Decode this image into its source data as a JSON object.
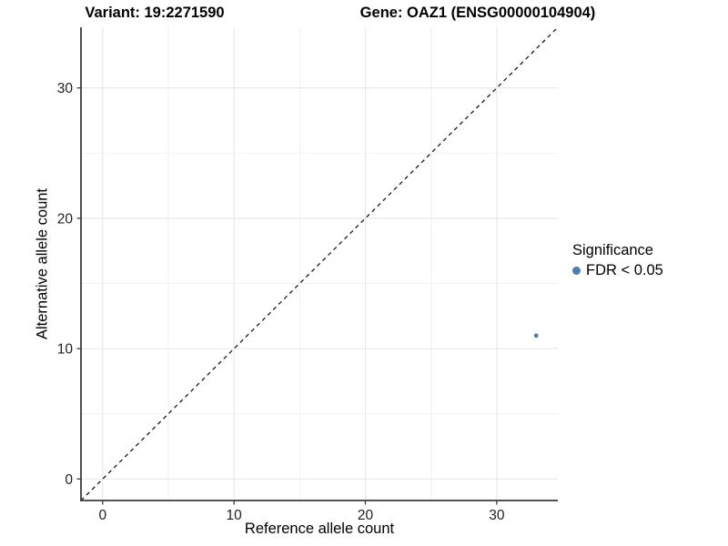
{
  "chart_data": {
    "type": "scatter",
    "title_variant": "Variant: 19:2271590",
    "title_gene": "Gene: OAZ1 (ENSG00000104904)",
    "xlabel": "Reference allele count",
    "ylabel": "Alternative allele count",
    "xlim": [
      -1.65,
      34.65
    ],
    "ylim": [
      -1.65,
      34.65
    ],
    "xticks": [
      0,
      10,
      20,
      30
    ],
    "yticks": [
      0,
      10,
      20,
      30
    ],
    "xminor": [
      5,
      15,
      25
    ],
    "yminor": [
      5,
      15,
      25
    ],
    "grid": true,
    "points": [
      {
        "x": 33,
        "y": 11,
        "series": "FDR < 0.05"
      }
    ],
    "reference_line": {
      "type": "identity",
      "slope": 1,
      "intercept": 0,
      "style": "dashed"
    },
    "legend": {
      "title": "Significance",
      "position": "right",
      "items": [
        {
          "label": "FDR < 0.05",
          "marker": "circle",
          "color": "#4d7eae"
        }
      ]
    },
    "colors": {
      "point": "#4d7eae",
      "grid_major": "#e7e7e7",
      "grid_minor": "#f2f2f2",
      "axis_line": "#3c3c3c",
      "reference_line": "#1a1a1a",
      "tick_text": "#1f1f1f"
    }
  }
}
